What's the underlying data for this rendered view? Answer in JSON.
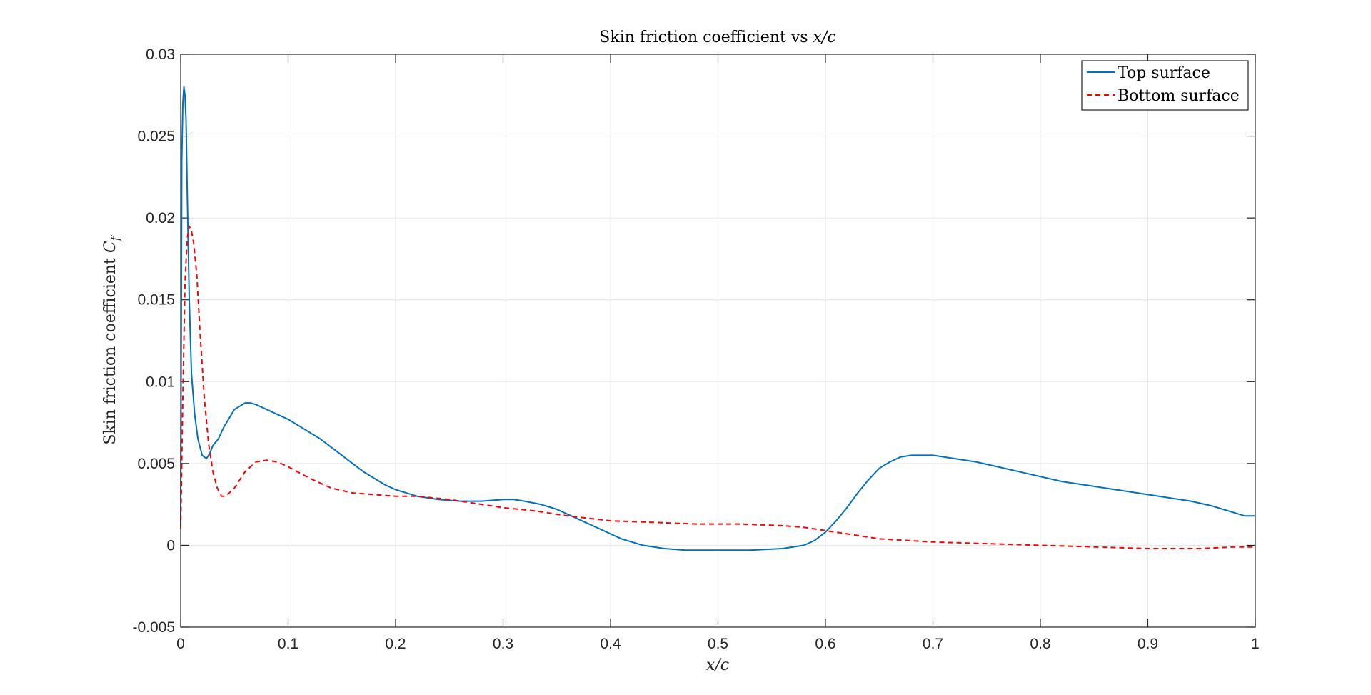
{
  "chart_data": {
    "type": "line",
    "title": "Skin friction coefficient vs x/c",
    "title_parts": {
      "prefix": "Skin friction coefficient vs ",
      "math": "x/c"
    },
    "xlabel": "x/c",
    "ylabel": "Skin friction coefficient C_f",
    "ylabel_parts": {
      "prefix": "Skin friction coefficient ",
      "math_base": "C",
      "math_sub": "f"
    },
    "xlim": [
      0,
      1
    ],
    "ylim": [
      -0.005,
      0.03
    ],
    "xticks": [
      0,
      0.1,
      0.2,
      0.3,
      0.4,
      0.5,
      0.6,
      0.7,
      0.8,
      0.9,
      1
    ],
    "xtick_labels": [
      "0",
      "0.1",
      "0.2",
      "0.3",
      "0.4",
      "0.5",
      "0.6",
      "0.7",
      "0.8",
      "0.9",
      "1"
    ],
    "yticks": [
      -0.005,
      0,
      0.005,
      0.01,
      0.015,
      0.02,
      0.025,
      0.03
    ],
    "ytick_labels": [
      "-0.005",
      "0",
      "0.005",
      "0.01",
      "0.015",
      "0.02",
      "0.025",
      "0.03"
    ],
    "grid": true,
    "legend_position": "top-right",
    "series": [
      {
        "name": "Top surface",
        "color": "#0072BD",
        "line_style": "solid",
        "x": [
          0,
          0.001,
          0.002,
          0.003,
          0.004,
          0.005,
          0.006,
          0.008,
          0.01,
          0.013,
          0.016,
          0.02,
          0.024,
          0.027,
          0.03,
          0.035,
          0.04,
          0.05,
          0.06,
          0.065,
          0.07,
          0.08,
          0.09,
          0.1,
          0.11,
          0.12,
          0.13,
          0.14,
          0.15,
          0.16,
          0.17,
          0.18,
          0.19,
          0.2,
          0.22,
          0.24,
          0.26,
          0.28,
          0.3,
          0.31,
          0.32,
          0.335,
          0.35,
          0.37,
          0.39,
          0.41,
          0.43,
          0.45,
          0.47,
          0.5,
          0.53,
          0.56,
          0.58,
          0.59,
          0.6,
          0.61,
          0.62,
          0.63,
          0.64,
          0.65,
          0.66,
          0.67,
          0.68,
          0.69,
          0.7,
          0.72,
          0.74,
          0.76,
          0.78,
          0.8,
          0.82,
          0.84,
          0.86,
          0.88,
          0.9,
          0.92,
          0.94,
          0.96,
          0.97,
          0.98,
          0.99,
          1.0
        ],
        "y": [
          0.0012,
          0.0235,
          0.027,
          0.028,
          0.0275,
          0.026,
          0.022,
          0.015,
          0.0105,
          0.008,
          0.0065,
          0.0055,
          0.0053,
          0.0056,
          0.0061,
          0.0065,
          0.0072,
          0.0083,
          0.0087,
          0.0087,
          0.0086,
          0.0083,
          0.008,
          0.0077,
          0.0073,
          0.0069,
          0.0065,
          0.006,
          0.0055,
          0.005,
          0.0045,
          0.0041,
          0.0037,
          0.0034,
          0.003,
          0.0028,
          0.0027,
          0.0027,
          0.0028,
          0.0028,
          0.0027,
          0.0025,
          0.0022,
          0.0016,
          0.001,
          0.0004,
          0.0,
          -0.0002,
          -0.0003,
          -0.0003,
          -0.0003,
          -0.0002,
          0.0,
          0.0003,
          0.0008,
          0.0015,
          0.0023,
          0.0032,
          0.004,
          0.0047,
          0.0051,
          0.0054,
          0.0055,
          0.0055,
          0.0055,
          0.0053,
          0.0051,
          0.0048,
          0.0045,
          0.0042,
          0.0039,
          0.0037,
          0.0035,
          0.0033,
          0.0031,
          0.0029,
          0.0027,
          0.0024,
          0.0022,
          0.002,
          0.0018,
          0.0018
        ]
      },
      {
        "name": "Bottom surface",
        "color": "#FF0000",
        "line_style": "dashed",
        "x": [
          0,
          0.002,
          0.004,
          0.006,
          0.008,
          0.01,
          0.012,
          0.015,
          0.018,
          0.022,
          0.026,
          0.03,
          0.034,
          0.038,
          0.042,
          0.05,
          0.06,
          0.07,
          0.08,
          0.09,
          0.1,
          0.12,
          0.14,
          0.16,
          0.18,
          0.2,
          0.22,
          0.25,
          0.28,
          0.3,
          0.33,
          0.36,
          0.4,
          0.44,
          0.48,
          0.52,
          0.56,
          0.58,
          0.6,
          0.62,
          0.65,
          0.7,
          0.75,
          0.8,
          0.85,
          0.9,
          0.95,
          0.98,
          1.0
        ],
        "y": [
          0.001,
          0.009,
          0.016,
          0.0187,
          0.0195,
          0.0192,
          0.0185,
          0.0165,
          0.013,
          0.009,
          0.0062,
          0.0045,
          0.0035,
          0.003,
          0.003,
          0.0035,
          0.0045,
          0.0051,
          0.0052,
          0.0051,
          0.0048,
          0.0041,
          0.0035,
          0.0032,
          0.0031,
          0.003,
          0.003,
          0.0028,
          0.0025,
          0.0023,
          0.0021,
          0.0018,
          0.0015,
          0.0014,
          0.0013,
          0.0013,
          0.0012,
          0.0011,
          0.0009,
          0.0007,
          0.0004,
          0.0002,
          0.0001,
          0.0,
          -0.0001,
          -0.0002,
          -0.0002,
          -0.0001,
          -0.0001
        ]
      }
    ]
  }
}
